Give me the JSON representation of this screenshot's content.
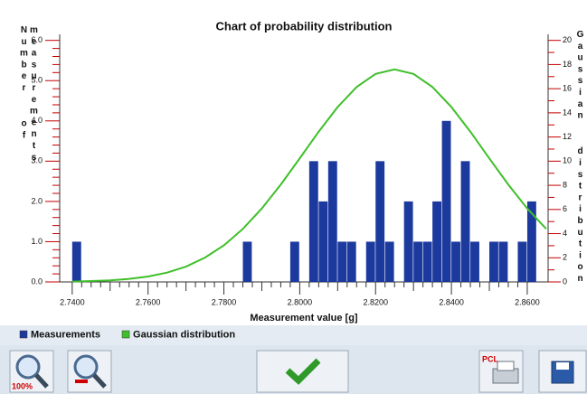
{
  "chart_data": {
    "type": "histogram",
    "title": "Chart of probability distribution",
    "x_label": "Measurement value [g]",
    "y_label": "Number of measurements",
    "y2_label": "Gaussian distribution",
    "bins": [
      2.74,
      2.7425,
      2.745,
      2.7475,
      2.75,
      2.7525,
      2.755,
      2.7575,
      2.76,
      2.7625,
      2.765,
      2.7675,
      2.77,
      2.7725,
      2.775,
      2.7775,
      2.78,
      2.7825,
      2.785,
      2.7875,
      2.79,
      2.7925,
      2.795,
      2.7975,
      2.8,
      2.8025,
      2.805,
      2.8075,
      2.81,
      2.8125,
      2.815,
      2.8175,
      2.82,
      2.8225,
      2.825,
      2.8275,
      2.83,
      2.8325,
      2.835,
      2.8375,
      2.84,
      2.8425,
      2.845,
      2.8475,
      2.85,
      2.8525,
      2.855,
      2.8575,
      2.86,
      2.8625
    ],
    "series": [
      {
        "name": "Measurements",
        "color": "#1c3a9e",
        "values": [
          1,
          0,
          0,
          0,
          0,
          0,
          0,
          0,
          0,
          0,
          0,
          0,
          0,
          0,
          0,
          0,
          0,
          0,
          1,
          0,
          0,
          0,
          0,
          1,
          0,
          3,
          2,
          3,
          1,
          1,
          0,
          1,
          3,
          1,
          0,
          2,
          1,
          1,
          2,
          4,
          1,
          3,
          1,
          0,
          1,
          1,
          0,
          1,
          2
        ]
      },
      {
        "name": "Gaussian distribution",
        "color": "#3fbf2a",
        "type": "line",
        "axis": "y2",
        "x": [
          2.74,
          2.745,
          2.75,
          2.755,
          2.76,
          2.765,
          2.77,
          2.775,
          2.78,
          2.785,
          2.79,
          2.795,
          2.8,
          2.805,
          2.81,
          2.815,
          2.82,
          2.825,
          2.83,
          2.835,
          2.84,
          2.845,
          2.85,
          2.855,
          2.86,
          2.865
        ],
        "values": [
          0.03,
          0.07,
          0.13,
          0.25,
          0.45,
          0.77,
          1.27,
          2.01,
          3.03,
          4.39,
          6.08,
          8.06,
          10.23,
          12.44,
          14.48,
          16.14,
          17.22,
          17.6,
          17.22,
          16.14,
          14.48,
          12.44,
          10.23,
          8.06,
          6.08,
          4.39
        ]
      }
    ],
    "xlim": [
      2.7367,
      2.8655
    ],
    "xticks": [
      {
        "value": 2.74,
        "label": "2.7400"
      },
      {
        "value": 2.76,
        "label": "2.7600"
      },
      {
        "value": 2.78,
        "label": "2.7800"
      },
      {
        "value": 2.8,
        "label": "2.8000"
      },
      {
        "value": 2.82,
        "label": "2.8200"
      },
      {
        "value": 2.84,
        "label": "2.8400"
      },
      {
        "value": 2.86,
        "label": "2.8600"
      }
    ],
    "ylim": [
      0,
      6.15
    ],
    "yticks": [
      {
        "value": 0,
        "label": "0.0"
      },
      {
        "value": 1,
        "label": "1.0"
      },
      {
        "value": 2,
        "label": "2.0"
      },
      {
        "value": 3,
        "label": "3.0"
      },
      {
        "value": 4,
        "label": "4.0"
      },
      {
        "value": 5,
        "label": "5.0"
      },
      {
        "value": 6,
        "label": "6.0"
      }
    ],
    "y2lim": [
      0,
      20.5
    ],
    "y2ticks": [
      0,
      2,
      4,
      6,
      8,
      10,
      12,
      14,
      16,
      18,
      20
    ]
  },
  "toolbar": {
    "zoom_label": "100%",
    "print_label": "PCL"
  }
}
